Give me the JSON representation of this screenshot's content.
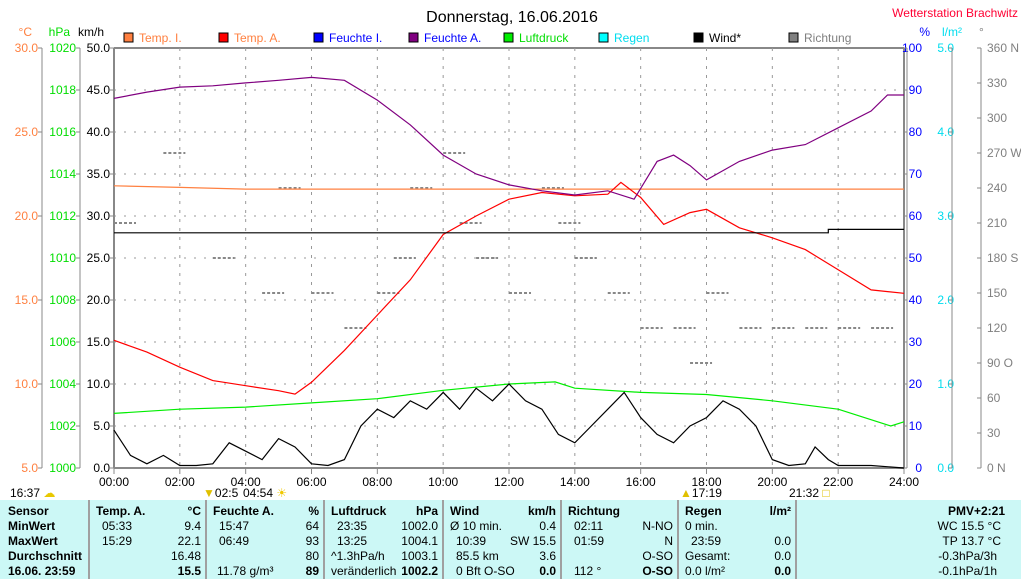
{
  "title": "Donnerstag, 16.06.2016",
  "station": "Wetterstation Brachwitz",
  "colors": {
    "temp_i": "#ff8040",
    "temp_a": "#ff0000",
    "feuchte_i": "#0000ff",
    "feuchte_a": "#800080",
    "luftdruck": "#00ee00",
    "regen": "#00ffff",
    "wind": "#000000",
    "richtung": "#808080"
  },
  "chart_data": {
    "type": "line",
    "title": "Donnerstag, 16.06.2016",
    "xlim": [
      0,
      24
    ],
    "x_ticks": [
      "00:00",
      "02:00",
      "04:00",
      "06:00",
      "08:00",
      "10:00",
      "12:00",
      "14:00",
      "16:00",
      "18:00",
      "20:00",
      "22:00",
      "24:00"
    ],
    "axes": {
      "temp": {
        "unit": "°C",
        "range": [
          5,
          30
        ],
        "ticks": [
          "30.0",
          "25.0",
          "20.0",
          "15.0",
          "10.0",
          "5.0"
        ]
      },
      "pressure": {
        "unit": "hPa",
        "range": [
          1000,
          1020
        ],
        "ticks": [
          "1020",
          "1018",
          "1016",
          "1014",
          "1012",
          "1010",
          "1008",
          "1006",
          "1004",
          "1002",
          "1000"
        ]
      },
      "wind": {
        "unit": "km/h",
        "range": [
          0,
          50
        ],
        "ticks": [
          "50.0",
          "45.0",
          "40.0",
          "35.0",
          "30.0",
          "25.0",
          "20.0",
          "15.0",
          "10.0",
          "5.0",
          "0.0"
        ]
      },
      "humidity": {
        "unit": "%",
        "range": [
          0,
          100
        ],
        "ticks": [
          "100",
          "90",
          "80",
          "70",
          "60",
          "50",
          "40",
          "30",
          "20",
          "10",
          "0"
        ]
      },
      "rain": {
        "unit": "l/m²",
        "range": [
          0,
          5
        ],
        "ticks": [
          "5.0",
          "4.0",
          "3.0",
          "2.0",
          "1.0",
          "0.0"
        ]
      },
      "direction": {
        "unit": "°",
        "range": [
          0,
          360
        ],
        "ticks": [
          "360 N",
          "330",
          "300",
          "270 W",
          "240",
          "210",
          "180 S",
          "150",
          "120",
          "90 O",
          "60",
          "30",
          "0 N"
        ]
      }
    },
    "legend": [
      "Temp. I.",
      "Temp. A.",
      "Feuchte I.",
      "Feuchte A.",
      "Luftdruck",
      "Regen",
      "Wind*",
      "Richtung"
    ],
    "series": [
      {
        "name": "Temp. I.",
        "axis": "temp",
        "color": "#ff8040",
        "points": [
          [
            0,
            21.8
          ],
          [
            2,
            21.7
          ],
          [
            4,
            21.6
          ],
          [
            8,
            21.6
          ],
          [
            12,
            21.6
          ],
          [
            16,
            21.6
          ],
          [
            20,
            21.6
          ],
          [
            24,
            21.6
          ]
        ]
      },
      {
        "name": "Temp. A.",
        "axis": "temp",
        "color": "#ff0000",
        "points": [
          [
            0,
            12.6
          ],
          [
            1,
            11.9
          ],
          [
            2,
            11
          ],
          [
            3,
            10.2
          ],
          [
            4,
            9.9
          ],
          [
            5,
            9.6
          ],
          [
            5.5,
            9.4
          ],
          [
            6,
            10.1
          ],
          [
            7,
            12
          ],
          [
            8,
            14.1
          ],
          [
            9,
            16.2
          ],
          [
            10,
            18.9
          ],
          [
            11,
            20
          ],
          [
            12,
            21
          ],
          [
            13,
            21.4
          ],
          [
            14,
            21.2
          ],
          [
            15,
            21.3
          ],
          [
            15.4,
            22
          ],
          [
            16,
            21.1
          ],
          [
            16.7,
            19.5
          ],
          [
            17.5,
            20.2
          ],
          [
            18,
            20.4
          ],
          [
            19,
            19.3
          ],
          [
            20,
            18.7
          ],
          [
            21,
            18
          ],
          [
            22,
            16.8
          ],
          [
            23,
            15.6
          ],
          [
            24,
            15.4
          ]
        ]
      },
      {
        "name": "Feuchte A.",
        "axis": "humidity",
        "color": "#800080",
        "points": [
          [
            0,
            88
          ],
          [
            1,
            89.5
          ],
          [
            2,
            90.7
          ],
          [
            3,
            91
          ],
          [
            4,
            91.7
          ],
          [
            5,
            92.3
          ],
          [
            6,
            93
          ],
          [
            7,
            92.3
          ],
          [
            8,
            87.6
          ],
          [
            9,
            81.7
          ],
          [
            10,
            74.5
          ],
          [
            11,
            70
          ],
          [
            12,
            67.4
          ],
          [
            13,
            66
          ],
          [
            14,
            65
          ],
          [
            15,
            66
          ],
          [
            15.8,
            64
          ],
          [
            16.5,
            73
          ],
          [
            17,
            74.5
          ],
          [
            17.5,
            72
          ],
          [
            18,
            68.6
          ],
          [
            19,
            73
          ],
          [
            20,
            75.7
          ],
          [
            21,
            77
          ],
          [
            22,
            81
          ],
          [
            23,
            85
          ],
          [
            23.5,
            88.8
          ],
          [
            24,
            88.8
          ]
        ]
      },
      {
        "name": "Luftdruck",
        "axis": "pressure",
        "color": "#00ee00",
        "points": [
          [
            0,
            1002.6
          ],
          [
            2,
            1002.8
          ],
          [
            4,
            1002.9
          ],
          [
            6,
            1003.1
          ],
          [
            8,
            1003.3
          ],
          [
            10,
            1003.7
          ],
          [
            12,
            1004.0
          ],
          [
            13.4,
            1004.1
          ],
          [
            14,
            1003.8
          ],
          [
            16,
            1003.6
          ],
          [
            18,
            1003.5
          ],
          [
            20,
            1003.2
          ],
          [
            22,
            1002.8
          ],
          [
            23.6,
            1002.0
          ],
          [
            24,
            1002.2
          ]
        ]
      },
      {
        "name": "Wind*",
        "axis": "wind",
        "color": "#000000",
        "points": [
          [
            0,
            4.5
          ],
          [
            0.5,
            1.5
          ],
          [
            1,
            0.5
          ],
          [
            1.5,
            1.5
          ],
          [
            2,
            0.3
          ],
          [
            2.5,
            0.3
          ],
          [
            3,
            0.5
          ],
          [
            3.5,
            3
          ],
          [
            4,
            2
          ],
          [
            4.5,
            1
          ],
          [
            5,
            3.5
          ],
          [
            5.5,
            2.5
          ],
          [
            6,
            0.5
          ],
          [
            6.5,
            0.3
          ],
          [
            7,
            1
          ],
          [
            7.5,
            5
          ],
          [
            8,
            7
          ],
          [
            8.5,
            6
          ],
          [
            9,
            8
          ],
          [
            9.5,
            7
          ],
          [
            10,
            9
          ],
          [
            10.5,
            7
          ],
          [
            11,
            9.5
          ],
          [
            11.5,
            8
          ],
          [
            12,
            10
          ],
          [
            12.5,
            8
          ],
          [
            13,
            7
          ],
          [
            13.5,
            4
          ],
          [
            14,
            3
          ],
          [
            14.5,
            5
          ],
          [
            15,
            7
          ],
          [
            15.5,
            9
          ],
          [
            16,
            6
          ],
          [
            16.5,
            4
          ],
          [
            17,
            3
          ],
          [
            17.5,
            5
          ],
          [
            18,
            6
          ],
          [
            18.5,
            8
          ],
          [
            19,
            7
          ],
          [
            19.5,
            5
          ],
          [
            20,
            1
          ],
          [
            20.5,
            0.3
          ],
          [
            21,
            0.5
          ],
          [
            21.3,
            2.5
          ],
          [
            21.7,
            1
          ],
          [
            22,
            0.3
          ],
          [
            23,
            0.3
          ],
          [
            24,
            0
          ]
        ]
      },
      {
        "name": "Wind max",
        "axis": "wind",
        "color": "#000000",
        "points": [
          [
            0,
            28
          ],
          [
            21.7,
            28
          ],
          [
            21.7,
            28.4
          ],
          [
            24,
            28.4
          ]
        ]
      }
    ],
    "direction_marks": [
      [
        0,
        210
      ],
      [
        1.5,
        270
      ],
      [
        3,
        180
      ],
      [
        4.5,
        150
      ],
      [
        5,
        240
      ],
      [
        6,
        150
      ],
      [
        7,
        120
      ],
      [
        8,
        150
      ],
      [
        8.5,
        180
      ],
      [
        9,
        240
      ],
      [
        10,
        270
      ],
      [
        10.5,
        210
      ],
      [
        11,
        180
      ],
      [
        12,
        150
      ],
      [
        13,
        240
      ],
      [
        13.5,
        210
      ],
      [
        14,
        180
      ],
      [
        15,
        150
      ],
      [
        16,
        120
      ],
      [
        17,
        120
      ],
      [
        17.5,
        90
      ],
      [
        18,
        150
      ],
      [
        19,
        120
      ],
      [
        20,
        120
      ],
      [
        21,
        120
      ],
      [
        22,
        120
      ],
      [
        23,
        120
      ]
    ]
  },
  "markers": {
    "m1": "16:37",
    "m2": "02:5",
    "m3": "04:54",
    "m4": "17:19",
    "m5": "21:32"
  },
  "table": {
    "sensor": {
      "h": "Sensor",
      "r1": "MinWert",
      "r2": "MaxWert",
      "r3": "Durchschnitt",
      "r4": "16.06. 23:59"
    },
    "temp": {
      "h": "Temp. A.",
      "u": "°C",
      "r1t": "05:33",
      "r1v": "9.4",
      "r2t": "15:29",
      "r2v": "22.1",
      "r3v": "16.48",
      "r4v": "15.5"
    },
    "feuchte": {
      "h": "Feuchte A.",
      "u": "%",
      "r1t": "15:47",
      "r1v": "64",
      "r2t": "06:49",
      "r2v": "93",
      "r3v": "80",
      "r4t": "11.78 g/m³",
      "r4v": "89"
    },
    "druck": {
      "h": "Luftdruck",
      "u": "hPa",
      "r1t": "23:35",
      "r1v": "1002.0",
      "r2t": "13:25",
      "r2v": "1004.1",
      "r3t": "^1.3hPa/h",
      "r3v": "1003.1",
      "r4t": "veränderlich",
      "r4v": "1002.2"
    },
    "wind": {
      "h": "Wind",
      "u": "km/h",
      "r1t": "Ø 10 min.",
      "r1v": "0.4",
      "r2t": "10:39",
      "r2v": "SW 15.5",
      "r3t": "85.5 km",
      "r3v": "3.6",
      "r4t": "0 Bft O-SO",
      "r4v": "0.0"
    },
    "richtung": {
      "h": "Richtung",
      "r1t": "02:11",
      "r1v": "N-NO",
      "r2t": "01:59",
      "r2v": "N",
      "r3v": "O-SO",
      "r4t": "112 °",
      "r4v": "O-SO"
    },
    "regen": {
      "h": "Regen",
      "u": "l/m²",
      "r1t": "0 min.",
      "r2t": "23:59",
      "r2v": "0.0",
      "r3t": "Gesamt:",
      "r3v": "0.0",
      "r4t": "0.0 l/m²",
      "r4v": "0.0"
    },
    "pmv": {
      "h": "PMV+2:21",
      "r1": "WC 15.5 °C",
      "r2": "TP 13.7 °C",
      "r3": "-0.3hPa/3h",
      "r4": "-0.1hPa/1h"
    }
  }
}
